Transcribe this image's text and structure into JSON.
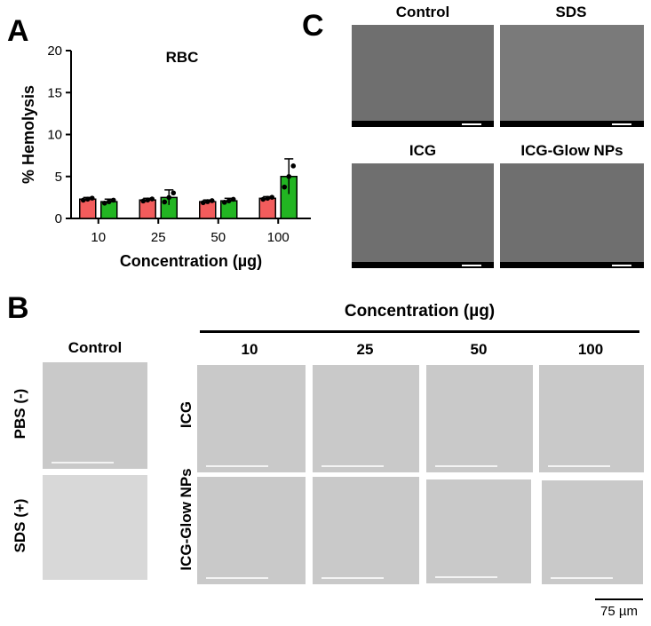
{
  "panels": {
    "A": "A",
    "B": "B",
    "C": "C"
  },
  "chart_data": {
    "type": "bar",
    "title": "RBC",
    "xlabel": "Concentration (µg)",
    "ylabel": "% Hemolysis",
    "categories": [
      "10",
      "25",
      "50",
      "100"
    ],
    "ylim": [
      0,
      20
    ],
    "yticks": [
      0,
      5,
      10,
      15,
      20
    ],
    "grid": false,
    "series": [
      {
        "values": [
          2.3,
          2.2,
          2.0,
          2.4
        ],
        "errors": [
          0.2,
          0.2,
          0.2,
          0.2
        ],
        "color": "#f25c5c"
      },
      {
        "values": [
          2.0,
          2.5,
          2.1,
          5.0
        ],
        "errors": [
          0.3,
          0.9,
          0.3,
          2.1
        ],
        "color": "#22b522"
      }
    ]
  },
  "panel_c": {
    "labels": [
      "Control",
      "SDS",
      "ICG",
      "ICG-Glow NPs"
    ]
  },
  "panel_b": {
    "header": "Concentration (µg)",
    "control_label": "Control",
    "concentrations": [
      "10",
      "25",
      "50",
      "100"
    ],
    "row_labels_left": [
      "PBS (-)",
      "SDS (+)"
    ],
    "row_labels_mid": [
      "ICG",
      "ICG-Glow NPs"
    ],
    "scale_label": "75 µm"
  },
  "colors": {
    "red_bar": "#f25c5c",
    "green_bar": "#22b522",
    "sem_bg": "#6f6f6f",
    "micro_bg": "#c9c9c9"
  }
}
